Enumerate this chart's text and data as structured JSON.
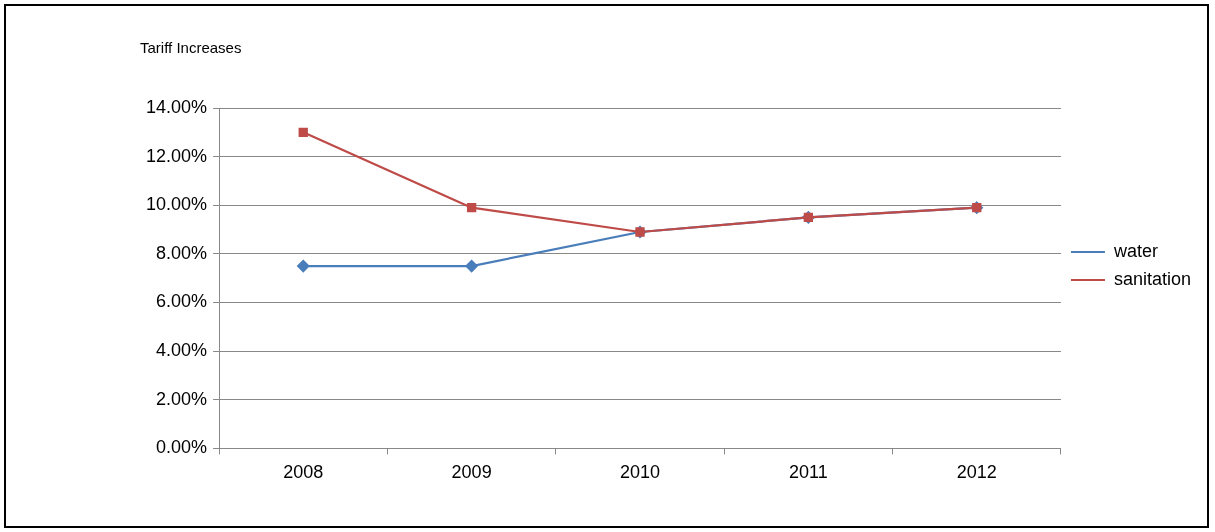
{
  "chart_data": {
    "type": "line",
    "title": "Tariff Increases",
    "categories": [
      "2008",
      "2009",
      "2010",
      "2011",
      "2012"
    ],
    "series": [
      {
        "name": "water",
        "color": "#4a7ebb",
        "marker": "diamond",
        "values": [
          7.5,
          7.5,
          8.9,
          9.5,
          9.9
        ]
      },
      {
        "name": "sanitation",
        "color": "#be4b48",
        "marker": "square",
        "values": [
          13.0,
          9.9,
          8.9,
          9.5,
          9.9
        ]
      }
    ],
    "ylim": [
      0,
      14
    ],
    "yticks": [
      {
        "value": 0,
        "label": "0.00%"
      },
      {
        "value": 2,
        "label": "2.00%"
      },
      {
        "value": 4,
        "label": "4.00%"
      },
      {
        "value": 6,
        "label": "6.00%"
      },
      {
        "value": 8,
        "label": "8.00%"
      },
      {
        "value": 10,
        "label": "10.00%"
      },
      {
        "value": 12,
        "label": "12.00%"
      },
      {
        "value": 14,
        "label": "14.00%"
      }
    ],
    "grid": "y",
    "legend": "right",
    "line_style": "solid"
  }
}
